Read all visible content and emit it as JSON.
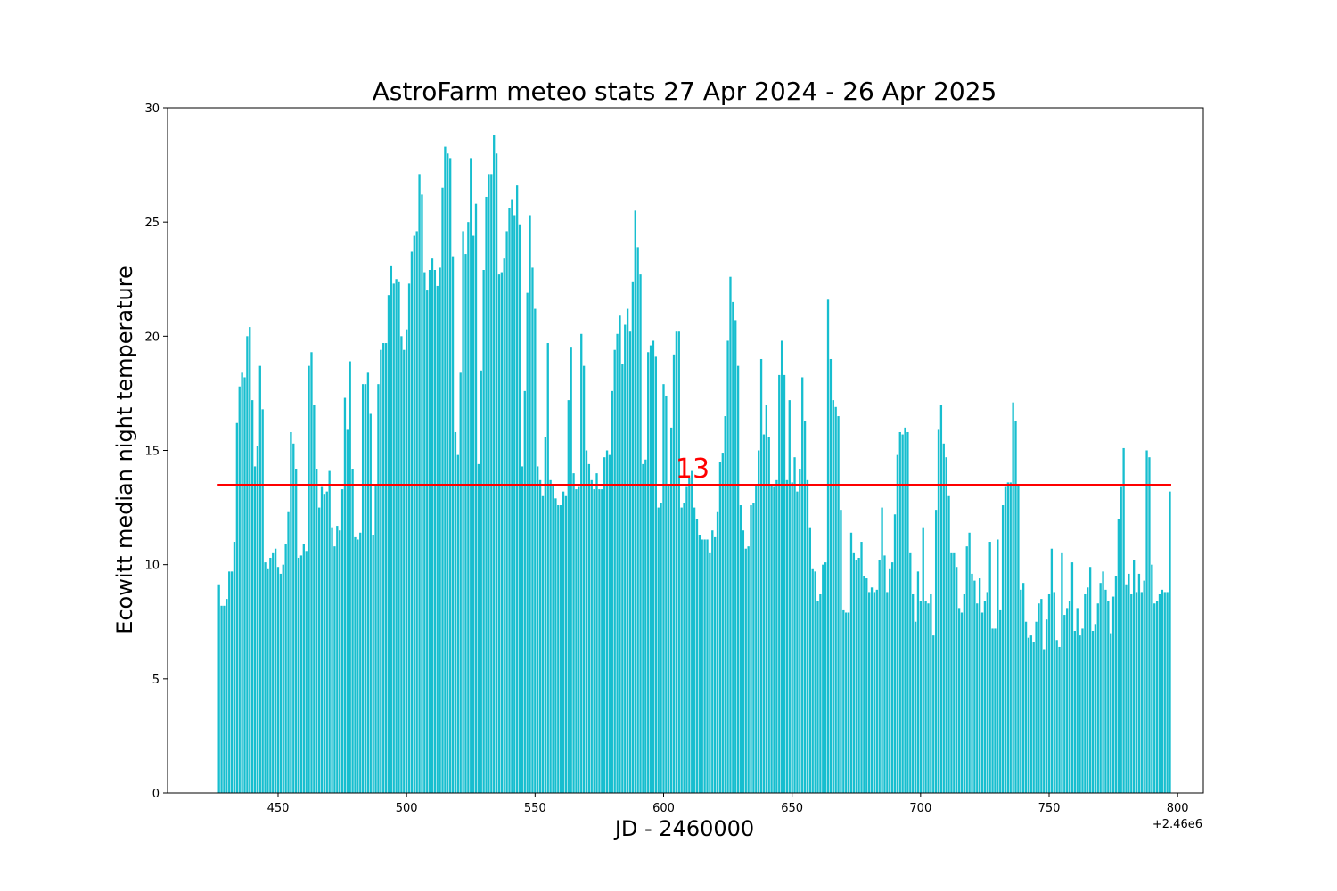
{
  "chart_data": {
    "type": "bar",
    "title": "AstroFarm meteo stats 27 Apr 2024 - 26 Apr 2025",
    "xlabel": "JD - 2460000",
    "ylabel": "Ecowitt median night temperature",
    "x_offset_label": "+2.46e6",
    "xlim": [
      407,
      810
    ],
    "ylim": [
      0,
      30
    ],
    "xticks": [
      450,
      500,
      550,
      600,
      650,
      700,
      750,
      800
    ],
    "yticks": [
      0,
      5,
      10,
      15,
      20,
      25,
      30
    ],
    "grid": false,
    "bar_color": "#17becf",
    "x_start": 427,
    "values": [
      9.1,
      8.2,
      8.2,
      8.5,
      9.7,
      9.7,
      11.0,
      16.2,
      17.8,
      18.4,
      18.2,
      20.0,
      20.4,
      17.2,
      14.3,
      15.2,
      18.7,
      16.8,
      10.1,
      9.8,
      10.3,
      10.5,
      10.7,
      9.9,
      9.6,
      10.0,
      10.9,
      12.3,
      15.8,
      15.3,
      14.2,
      10.3,
      10.4,
      10.9,
      10.6,
      18.7,
      19.3,
      17.0,
      14.2,
      12.5,
      13.4,
      13.1,
      13.2,
      14.1,
      11.6,
      10.8,
      11.7,
      11.5,
      13.3,
      17.3,
      15.9,
      18.9,
      14.2,
      11.2,
      11.1,
      11.4,
      17.9,
      17.9,
      18.4,
      16.6,
      11.3,
      13.5,
      17.9,
      19.4,
      19.7,
      19.7,
      21.8,
      23.1,
      22.3,
      22.5,
      22.4,
      20.0,
      19.4,
      20.3,
      22.3,
      23.7,
      24.4,
      24.6,
      27.1,
      26.2,
      22.8,
      22.0,
      22.9,
      23.4,
      22.9,
      22.2,
      23.0,
      26.5,
      28.3,
      28.0,
      27.8,
      23.5,
      15.8,
      14.8,
      18.4,
      24.6,
      23.6,
      25.0,
      27.8,
      24.4,
      25.8,
      14.4,
      18.5,
      22.9,
      26.1,
      27.1,
      27.1,
      28.8,
      28.0,
      22.7,
      22.8,
      23.4,
      24.6,
      25.6,
      26.0,
      25.3,
      26.6,
      24.9,
      14.3,
      17.6,
      21.9,
      25.3,
      23.0,
      21.2,
      14.3,
      13.7,
      13.0,
      15.6,
      19.7,
      13.7,
      13.5,
      12.9,
      12.6,
      12.6,
      13.2,
      13.0,
      17.2,
      19.5,
      14.0,
      13.3,
      13.4,
      20.1,
      18.7,
      15.0,
      14.4,
      13.7,
      13.3,
      14.0,
      13.3,
      13.3,
      14.7,
      15.0,
      14.8,
      17.6,
      19.4,
      20.1,
      20.9,
      18.8,
      20.5,
      21.2,
      20.2,
      22.4,
      25.5,
      23.9,
      22.7,
      14.4,
      14.6,
      19.3,
      19.6,
      19.8,
      19.1,
      12.5,
      12.7,
      17.9,
      17.4,
      13.5,
      16.0,
      19.2,
      20.2,
      20.2,
      12.5,
      12.7,
      13.4,
      13.8,
      14.1,
      12.5,
      12.0,
      11.3,
      11.1,
      11.1,
      11.1,
      10.5,
      11.5,
      11.2,
      12.3,
      14.5,
      14.9,
      16.5,
      19.8,
      22.6,
      21.5,
      20.7,
      18.7,
      12.6,
      11.5,
      10.7,
      10.8,
      12.6,
      12.7,
      13.5,
      15.0,
      19.0,
      15.7,
      17.0,
      15.6,
      13.5,
      13.4,
      13.7,
      18.3,
      19.8,
      18.3,
      13.7,
      17.2,
      13.6,
      14.7,
      13.2,
      14.2,
      18.2,
      16.3,
      13.7,
      11.6,
      9.8,
      9.7,
      8.4,
      8.7,
      10.0,
      10.1,
      21.6,
      19.0,
      17.2,
      16.9,
      16.5,
      12.4,
      8.0,
      7.9,
      7.9,
      11.4,
      10.5,
      10.2,
      10.3,
      11.0,
      9.5,
      9.4,
      8.8,
      9.0,
      8.8,
      8.9,
      10.2,
      12.5,
      10.4,
      8.8,
      9.8,
      10.1,
      12.2,
      14.8,
      15.8,
      15.7,
      16.0,
      15.8,
      10.5,
      8.7,
      7.5,
      9.7,
      8.4,
      11.6,
      8.4,
      8.3,
      8.7,
      6.9,
      12.4,
      15.9,
      17.0,
      15.3,
      14.7,
      13.0,
      10.5,
      10.5,
      9.9,
      8.1,
      7.9,
      8.7,
      10.8,
      11.4,
      9.6,
      9.3,
      8.3,
      9.4,
      7.9,
      8.4,
      8.8,
      11.0,
      7.2,
      7.2,
      11.1,
      8.0,
      12.6,
      13.4,
      13.6,
      13.6,
      17.1,
      16.3,
      13.5,
      8.9,
      9.2,
      7.5,
      6.8,
      6.9,
      6.6,
      7.5,
      8.3,
      8.5,
      6.3,
      7.6,
      8.7,
      10.7,
      8.8,
      6.7,
      6.4,
      10.5,
      7.8,
      8.1,
      8.4,
      10.1,
      7.1,
      8.1,
      6.9,
      7.2,
      8.7,
      9.0,
      9.9,
      7.1,
      7.4,
      8.3,
      9.2,
      9.7,
      8.9,
      8.4,
      7.0,
      8.6,
      9.5,
      12.0,
      13.4,
      15.1,
      9.1,
      9.6,
      8.7,
      10.2,
      8.8,
      9.6,
      8.8,
      9.3,
      15.0,
      14.7,
      10.0,
      8.3,
      8.4,
      8.7,
      8.9,
      8.8,
      8.8,
      13.2
    ],
    "reference_line": {
      "value": 13.5,
      "label": "13",
      "color": "#ff0000"
    }
  }
}
